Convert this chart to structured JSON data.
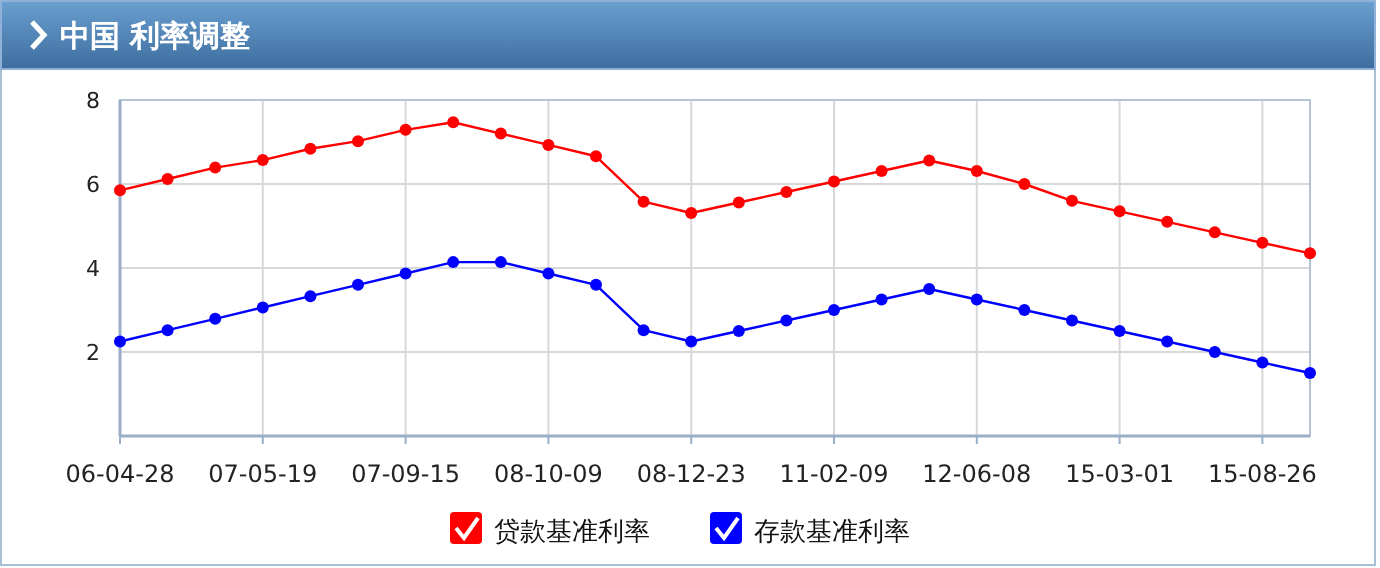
{
  "chart_data": {
    "type": "line",
    "title": "中国 利率调整",
    "categories": [
      "06-04-28",
      null,
      null,
      "07-05-19",
      null,
      null,
      "07-09-15",
      null,
      null,
      "08-10-09",
      null,
      null,
      "08-12-23",
      null,
      null,
      "11-02-09",
      null,
      null,
      "12-06-08",
      null,
      null,
      "15-03-01",
      null,
      null,
      "15-08-26",
      null
    ],
    "series": [
      {
        "name": "贷款基准利率",
        "color": "#ff0000",
        "values": [
          5.85,
          6.12,
          6.39,
          6.57,
          6.84,
          7.02,
          7.29,
          7.47,
          7.2,
          6.93,
          6.66,
          5.58,
          5.31,
          5.56,
          5.81,
          6.06,
          6.31,
          6.56,
          6.31,
          6.0,
          5.6,
          5.35,
          5.1,
          4.85,
          4.6,
          4.35
        ]
      },
      {
        "name": "存款基准利率",
        "color": "#0000ff",
        "values": [
          2.25,
          2.52,
          2.79,
          3.06,
          3.33,
          3.6,
          3.87,
          4.14,
          4.14,
          3.87,
          3.6,
          2.52,
          2.25,
          2.5,
          2.75,
          3.0,
          3.25,
          3.5,
          3.25,
          3.0,
          2.75,
          2.5,
          2.25,
          2.0,
          1.75,
          1.5
        ]
      }
    ],
    "ylim": [
      0,
      8
    ],
    "yticks": [
      2,
      4,
      6,
      8
    ],
    "grid": true,
    "legend": "bottom",
    "marker": "circle",
    "line_style": "solid"
  }
}
